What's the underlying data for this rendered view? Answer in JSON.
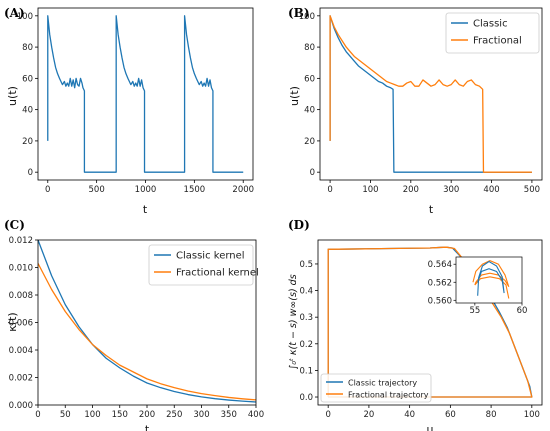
{
  "colors": {
    "classic": "#1f77b4",
    "fractional": "#ff7f0e",
    "axis": "#000000"
  },
  "chart_data": [
    {
      "panel": "(A)",
      "type": "line",
      "xlabel": "t",
      "ylabel": "u(t)",
      "xlim": [
        -100,
        2100
      ],
      "ylim": [
        -5,
        105
      ],
      "xticks": [
        0,
        500,
        1000,
        1500,
        2000
      ],
      "yticks": [
        0,
        20,
        40,
        60,
        80,
        100
      ],
      "series": [
        {
          "color": "#1f77b4",
          "points": [
            [
              0,
              20
            ],
            [
              0,
              100
            ],
            [
              20,
              88
            ],
            [
              40,
              80
            ],
            [
              60,
              73
            ],
            [
              80,
              67
            ],
            [
              100,
              63
            ],
            [
              120,
              60
            ],
            [
              150,
              56
            ],
            [
              170,
              58
            ],
            [
              185,
              55
            ],
            [
              200,
              57
            ],
            [
              215,
              55
            ],
            [
              230,
              60
            ],
            [
              245,
              55
            ],
            [
              260,
              59
            ],
            [
              275,
              54
            ],
            [
              290,
              60
            ],
            [
              305,
              56
            ],
            [
              320,
              55
            ],
            [
              335,
              60
            ],
            [
              350,
              57
            ],
            [
              360,
              54
            ],
            [
              375,
              52
            ],
            [
              375,
              0
            ],
            [
              700,
              0
            ],
            [
              700,
              100
            ],
            [
              720,
              88
            ],
            [
              740,
              80
            ],
            [
              760,
              73
            ],
            [
              780,
              67
            ],
            [
              800,
              63
            ],
            [
              820,
              60
            ],
            [
              850,
              56
            ],
            [
              870,
              58
            ],
            [
              885,
              55
            ],
            [
              900,
              57
            ],
            [
              915,
              55
            ],
            [
              930,
              60
            ],
            [
              945,
              55
            ],
            [
              960,
              59
            ],
            [
              975,
              54
            ],
            [
              990,
              52
            ],
            [
              990,
              0
            ],
            [
              1400,
              0
            ],
            [
              1400,
              100
            ],
            [
              1420,
              88
            ],
            [
              1440,
              80
            ],
            [
              1460,
              73
            ],
            [
              1480,
              67
            ],
            [
              1500,
              63
            ],
            [
              1520,
              60
            ],
            [
              1550,
              56
            ],
            [
              1570,
              58
            ],
            [
              1585,
              55
            ],
            [
              1600,
              57
            ],
            [
              1615,
              55
            ],
            [
              1630,
              60
            ],
            [
              1645,
              55
            ],
            [
              1660,
              59
            ],
            [
              1675,
              54
            ],
            [
              1690,
              52
            ],
            [
              1690,
              0
            ],
            [
              2000,
              0
            ]
          ]
        }
      ]
    },
    {
      "panel": "(B)",
      "type": "line",
      "xlabel": "t",
      "ylabel": "u(t)",
      "xlim": [
        -25,
        525
      ],
      "ylim": [
        -5,
        105
      ],
      "xticks": [
        0,
        100,
        200,
        300,
        400,
        500
      ],
      "yticks": [
        0,
        20,
        40,
        60,
        80,
        100
      ],
      "legend": "top-right",
      "series": [
        {
          "name": "Classic",
          "color": "#1f77b4",
          "points": [
            [
              0,
              20
            ],
            [
              0,
              100
            ],
            [
              10,
              92
            ],
            [
              20,
              86
            ],
            [
              30,
              81
            ],
            [
              40,
              77
            ],
            [
              50,
              74
            ],
            [
              60,
              71
            ],
            [
              70,
              68
            ],
            [
              80,
              66
            ],
            [
              90,
              64
            ],
            [
              100,
              62
            ],
            [
              110,
              60
            ],
            [
              120,
              58
            ],
            [
              130,
              57
            ],
            [
              140,
              55
            ],
            [
              150,
              54
            ],
            [
              156,
              53
            ],
            [
              158,
              0
            ],
            [
              500,
              0
            ]
          ]
        },
        {
          "name": "Fractional",
          "color": "#ff7f0e",
          "points": [
            [
              0,
              20
            ],
            [
              0,
              100
            ],
            [
              10,
              93
            ],
            [
              20,
              88
            ],
            [
              30,
              84
            ],
            [
              40,
              80
            ],
            [
              50,
              77
            ],
            [
              60,
              74
            ],
            [
              70,
              72
            ],
            [
              80,
              70
            ],
            [
              90,
              68
            ],
            [
              100,
              66
            ],
            [
              110,
              64
            ],
            [
              120,
              62
            ],
            [
              130,
              60
            ],
            [
              140,
              58
            ],
            [
              150,
              57
            ],
            [
              160,
              56
            ],
            [
              170,
              55
            ],
            [
              180,
              55
            ],
            [
              190,
              57
            ],
            [
              200,
              58
            ],
            [
              210,
              55
            ],
            [
              220,
              55
            ],
            [
              230,
              59
            ],
            [
              240,
              57
            ],
            [
              250,
              55
            ],
            [
              260,
              56
            ],
            [
              270,
              59
            ],
            [
              280,
              56
            ],
            [
              290,
              55
            ],
            [
              300,
              56
            ],
            [
              310,
              59
            ],
            [
              320,
              56
            ],
            [
              330,
              55
            ],
            [
              340,
              58
            ],
            [
              350,
              59
            ],
            [
              360,
              56
            ],
            [
              370,
              55
            ],
            [
              378,
              53
            ],
            [
              380,
              0
            ],
            [
              500,
              0
            ]
          ]
        }
      ]
    },
    {
      "panel": "(C)",
      "type": "line",
      "xlabel": "t",
      "ylabel": "κ(t)",
      "xlim": [
        0,
        400
      ],
      "ylim": [
        0,
        0.012
      ],
      "xticks": [
        0,
        50,
        100,
        150,
        200,
        250,
        300,
        350,
        400
      ],
      "yticks": [
        0.0,
        0.002,
        0.004,
        0.006,
        0.008,
        0.01,
        0.012
      ],
      "legend": "top-right",
      "series": [
        {
          "name": "Classic kernel",
          "color": "#1f77b4",
          "points": [
            [
              0,
              0.012
            ],
            [
              25,
              0.0094
            ],
            [
              50,
              0.0073
            ],
            [
              75,
              0.0057
            ],
            [
              100,
              0.0044
            ],
            [
              125,
              0.0034
            ],
            [
              150,
              0.0027
            ],
            [
              175,
              0.0021
            ],
            [
              200,
              0.0016
            ],
            [
              225,
              0.00126
            ],
            [
              250,
              0.00098
            ],
            [
              275,
              0.00076
            ],
            [
              300,
              0.00059
            ],
            [
              325,
              0.00046
            ],
            [
              350,
              0.00036
            ],
            [
              375,
              0.00028
            ],
            [
              400,
              0.00022
            ]
          ]
        },
        {
          "name": "Fractional kernel",
          "color": "#ff7f0e",
          "points": [
            [
              0,
              0.0103
            ],
            [
              25,
              0.0084
            ],
            [
              50,
              0.0068
            ],
            [
              75,
              0.0055
            ],
            [
              100,
              0.0044
            ],
            [
              125,
              0.0036
            ],
            [
              150,
              0.0029
            ],
            [
              175,
              0.0024
            ],
            [
              200,
              0.0019
            ],
            [
              225,
              0.00155
            ],
            [
              250,
              0.00126
            ],
            [
              275,
              0.00102
            ],
            [
              300,
              0.00083
            ],
            [
              325,
              0.00068
            ],
            [
              350,
              0.00055
            ],
            [
              375,
              0.00045
            ],
            [
              400,
              0.00037
            ]
          ]
        }
      ]
    },
    {
      "panel": "(D)",
      "type": "line",
      "xlabel": "u",
      "ylabel": "∫₀ᵗ κ(t − s) w∞(s) ds",
      "xlim": [
        -5,
        105
      ],
      "ylim": [
        -0.03,
        0.59
      ],
      "xticks": [
        0,
        20,
        40,
        60,
        80,
        100
      ],
      "yticks": [
        0.0,
        0.1,
        0.2,
        0.3,
        0.4,
        0.5
      ],
      "legend": "bottom-left",
      "series": [
        {
          "name": "Classic trajectory",
          "color": "#1f77b4",
          "points": [
            [
              0,
              0.0
            ],
            [
              0,
              0.555
            ],
            [
              10,
              0.556
            ],
            [
              30,
              0.558
            ],
            [
              50,
              0.56
            ],
            [
              55,
              0.562
            ],
            [
              58,
              0.563
            ],
            [
              61,
              0.56
            ],
            [
              66,
              0.52
            ],
            [
              72,
              0.46
            ],
            [
              78,
              0.4
            ],
            [
              84,
              0.32
            ],
            [
              88,
              0.26
            ],
            [
              92,
              0.18
            ],
            [
              96,
              0.1
            ],
            [
              99,
              0.04
            ],
            [
              100,
              0.0
            ],
            [
              0,
              0.0
            ]
          ]
        },
        {
          "name": "Fractional trajectory",
          "color": "#ff7f0e",
          "points": [
            [
              0,
              0.0
            ],
            [
              0,
              0.555
            ],
            [
              10,
              0.556
            ],
            [
              30,
              0.558
            ],
            [
              50,
              0.56
            ],
            [
              55,
              0.562
            ],
            [
              58,
              0.563
            ],
            [
              62,
              0.558
            ],
            [
              65,
              0.53
            ],
            [
              70,
              0.48
            ],
            [
              75,
              0.42
            ],
            [
              80,
              0.36
            ],
            [
              85,
              0.3
            ],
            [
              89,
              0.24
            ],
            [
              92,
              0.18
            ],
            [
              95,
              0.12
            ],
            [
              98,
              0.06
            ],
            [
              100,
              0.0
            ],
            [
              0,
              0.0
            ]
          ]
        }
      ],
      "inset": {
        "xlim": [
          53,
          60
        ],
        "ylim": [
          0.5597,
          0.5648
        ],
        "xticks": [
          55,
          60
        ],
        "yticks": [
          0.56,
          0.562,
          0.564
        ],
        "classic": [
          [
            55.3,
            0.5605
          ],
          [
            55.4,
            0.5625
          ],
          [
            55.8,
            0.5638
          ],
          [
            56.5,
            0.5643
          ],
          [
            57.3,
            0.5638
          ],
          [
            57.9,
            0.5626
          ],
          [
            58.1,
            0.5608
          ],
          [
            57.9,
            0.5622
          ],
          [
            57.3,
            0.5632
          ],
          [
            56.5,
            0.5635
          ],
          [
            55.7,
            0.5632
          ],
          [
            55.3,
            0.562
          ]
        ],
        "fractional": [
          [
            54.8,
            0.562
          ],
          [
            55.1,
            0.5632
          ],
          [
            55.8,
            0.564
          ],
          [
            56.6,
            0.5644
          ],
          [
            57.5,
            0.564
          ],
          [
            58.2,
            0.5628
          ],
          [
            58.6,
            0.5615
          ],
          [
            58.2,
            0.5622
          ],
          [
            57.5,
            0.5628
          ],
          [
            56.6,
            0.563
          ],
          [
            55.7,
            0.5628
          ],
          [
            55.1,
            0.562
          ],
          [
            55.0,
            0.5617
          ],
          [
            55.6,
            0.5624
          ],
          [
            56.6,
            0.5626
          ],
          [
            57.6,
            0.5624
          ],
          [
            58.3,
            0.5617
          ],
          [
            58.6,
            0.5602
          ]
        ]
      }
    }
  ]
}
